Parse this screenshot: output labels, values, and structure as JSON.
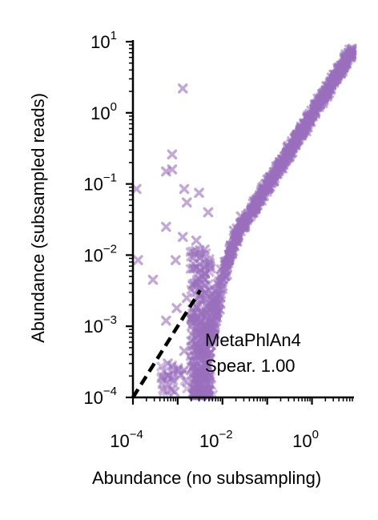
{
  "chart_data": {
    "type": "scatter",
    "xlabel": "Abundance (no subsampling)",
    "ylabel": "Abundance (subsampled reads)",
    "xscale": "log",
    "yscale": "log",
    "xlim": [
      0.0001,
      8
    ],
    "ylim": [
      0.0001,
      10
    ],
    "x_ticks": [
      {
        "value": 0.0001,
        "base": "10",
        "exp": "−4"
      },
      {
        "value": 0.01,
        "base": "10",
        "exp": "−2"
      },
      {
        "value": 1,
        "base": "10",
        "exp": "0"
      }
    ],
    "y_ticks": [
      {
        "value": 0.0001,
        "base": "10",
        "exp": "−4"
      },
      {
        "value": 0.001,
        "base": "10",
        "exp": "−3"
      },
      {
        "value": 0.01,
        "base": "10",
        "exp": "−2"
      },
      {
        "value": 0.1,
        "base": "10",
        "exp": "−1"
      },
      {
        "value": 1,
        "base": "10",
        "exp": "0"
      },
      {
        "value": 10,
        "base": "10",
        "exp": "1"
      }
    ],
    "grid": false,
    "point_color": "#9a6fbd",
    "point_marker": "x",
    "reference_line": {
      "style": "dashed",
      "color": "#000000",
      "x": [
        0.0001,
        0.0032
      ],
      "y": [
        0.0001,
        0.0032
      ]
    },
    "annotation": {
      "lines": [
        "MetaPhlAn4",
        "Spear. 1.00"
      ]
    },
    "outliers": [
      {
        "x": 0.0013,
        "y": 2.2
      },
      {
        "x": 0.00012,
        "y": 0.085
      },
      {
        "x": 0.00075,
        "y": 0.26
      },
      {
        "x": 0.00055,
        "y": 0.15
      },
      {
        "x": 0.00075,
        "y": 0.16
      },
      {
        "x": 0.0014,
        "y": 0.085
      },
      {
        "x": 0.003,
        "y": 0.075
      },
      {
        "x": 0.0048,
        "y": 0.04
      },
      {
        "x": 0.00055,
        "y": 0.025
      },
      {
        "x": 0.0016,
        "y": 0.055
      },
      {
        "x": 0.0013,
        "y": 0.018
      },
      {
        "x": 0.0026,
        "y": 0.016
      },
      {
        "x": 0.004,
        "y": 0.012
      },
      {
        "x": 0.0009,
        "y": 0.0085
      },
      {
        "x": 0.0022,
        "y": 0.0065
      },
      {
        "x": 0.00013,
        "y": 0.0085
      },
      {
        "x": 0.00028,
        "y": 0.0045
      },
      {
        "x": 0.0024,
        "y": 0.004
      },
      {
        "x": 0.0016,
        "y": 0.0025
      },
      {
        "x": 0.004,
        "y": 0.003
      },
      {
        "x": 0.00055,
        "y": 0.0012
      },
      {
        "x": 0.00095,
        "y": 0.0018
      },
      {
        "x": 0.0035,
        "y": 0.0015
      },
      {
        "x": 0.0045,
        "y": 0.0008
      },
      {
        "x": 0.0006,
        "y": 0.0003
      },
      {
        "x": 0.0014,
        "y": 0.00045
      },
      {
        "x": 0.00085,
        "y": 0.00012
      },
      {
        "x": 0.0025,
        "y": 0.00013
      },
      {
        "x": 0.0048,
        "y": 0.00012
      },
      {
        "x": 0.0032,
        "y": 0.0002
      },
      {
        "x": 0.018,
        "y": 0.022
      },
      {
        "x": 0.055,
        "y": 0.045
      },
      {
        "x": 0.026,
        "y": 0.035
      },
      {
        "x": 0.14,
        "y": 0.11
      },
      {
        "x": 0.0055,
        "y": 0.0065
      }
    ]
  }
}
